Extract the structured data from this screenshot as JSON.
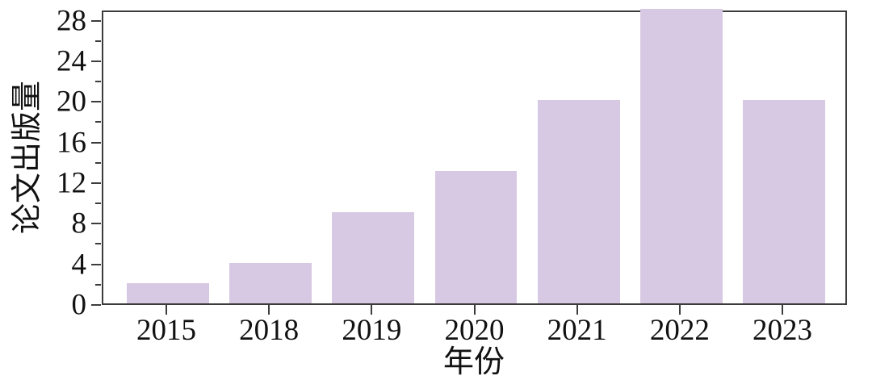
{
  "chart_data": {
    "type": "bar",
    "title": "",
    "xlabel": "年份",
    "ylabel": "论文出版量",
    "categories": [
      "2015",
      "2018",
      "2019",
      "2020",
      "2021",
      "2022",
      "2023"
    ],
    "values": [
      2,
      4,
      9,
      13,
      20,
      29,
      20
    ],
    "ylim": [
      0,
      29
    ],
    "yticks": [
      0,
      4,
      8,
      12,
      16,
      20,
      24,
      28
    ],
    "ytick_minor_step": 2,
    "grid": false,
    "legend_position": "none",
    "bar_color": "#d7c9e3",
    "axis_color": "#3c3c3c",
    "text_color": "#111111",
    "background_color": "#ffffff"
  }
}
